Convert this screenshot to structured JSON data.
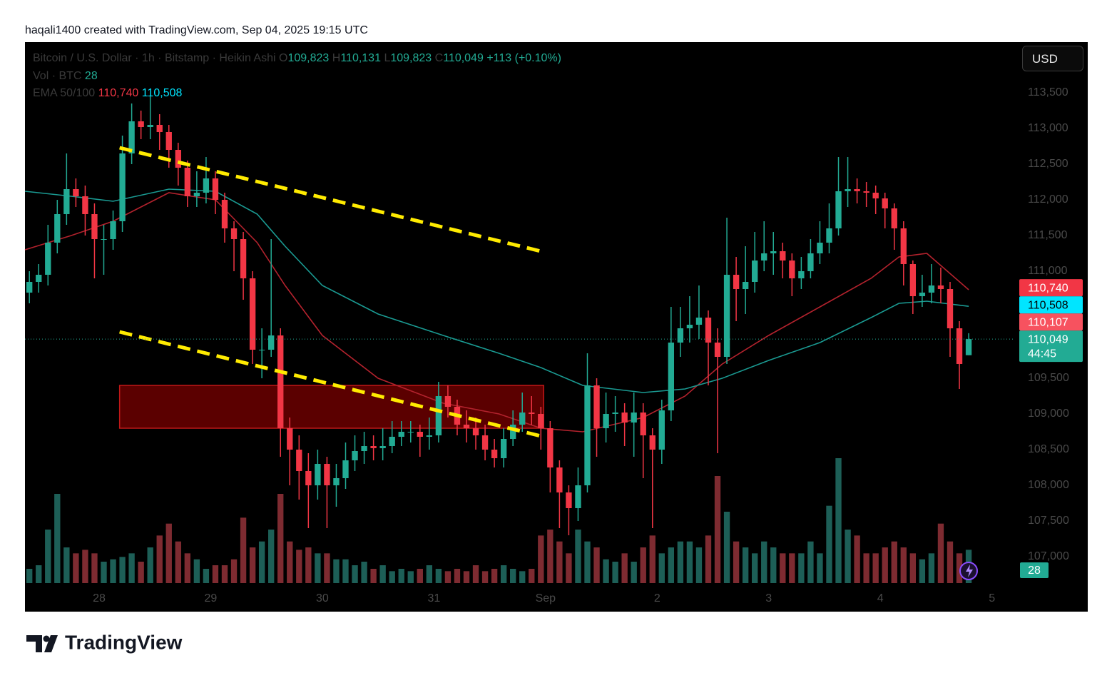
{
  "header": {
    "caption": "haqali1400 created with TradingView.com, Sep 04, 2025 19:15 UTC"
  },
  "footer": {
    "brand": "TradingView"
  },
  "chart_data": {
    "type": "candlestick",
    "legend": {
      "symbol": "Bitcoin / U.S. Dollar · 1h · Bitstamp · Heikin Ashi",
      "o_key": "O",
      "o": "109,823",
      "h_key": "H",
      "h": "110,131",
      "l_key": "L",
      "l": "109,823",
      "c_key": "C",
      "c": "110,049",
      "change": "+113 (+0.10%)",
      "volume": "Vol · BTC",
      "ema": "EMA 50/100"
    },
    "currency": "USD",
    "up_color": "#22ab94",
    "down_color": "#f23645",
    "open": [
      110700,
      110850,
      110950,
      111400,
      111800,
      112150,
      112050,
      111800,
      111450,
      111450,
      111700,
      112650,
      113100,
      113020,
      113050,
      112950,
      112700,
      112450,
      112050,
      112100,
      112300,
      112000,
      111600,
      111450,
      110900,
      109900,
      109900,
      110100,
      108800,
      108500,
      108200,
      108000,
      108300,
      108000,
      108100,
      108350,
      108480,
      108550,
      108520,
      108550,
      108680,
      108750,
      108750,
      108680,
      108700,
      109250,
      109100,
      108850,
      108800,
      108700,
      108500,
      108380,
      108650,
      108850,
      109020,
      109000,
      108800,
      108250,
      107900,
      107680,
      108000,
      109400,
      108800,
      109000,
      109020,
      108880,
      109020,
      108700,
      108500,
      109050,
      110000,
      110200,
      110250,
      110350,
      110000,
      109800,
      110950,
      110750,
      110850,
      111150,
      111250,
      111280,
      111150,
      110900,
      111000,
      111250,
      111400,
      111600,
      112120,
      112150,
      112120,
      112100,
      112020,
      111880,
      111600,
      111100,
      110650,
      110700,
      110800,
      110750,
      110200,
      109823
    ],
    "high": [
      111000,
      111100,
      111650,
      112000,
      112650,
      112300,
      112200,
      111950,
      111650,
      111850,
      112900,
      113350,
      113250,
      113450,
      113200,
      113050,
      112800,
      112550,
      112400,
      112600,
      112400,
      112100,
      111700,
      111550,
      111000,
      110200,
      111450,
      110200,
      108950,
      108700,
      108450,
      108500,
      108400,
      108300,
      108600,
      108700,
      108750,
      108700,
      108800,
      108900,
      108900,
      108900,
      108850,
      108950,
      109450,
      109400,
      109200,
      109050,
      108950,
      108850,
      108650,
      108800,
      109050,
      109300,
      109250,
      109100,
      108900,
      108350,
      108000,
      108250,
      109850,
      109500,
      109300,
      109250,
      109150,
      109300,
      109150,
      108800,
      109200,
      110500,
      110500,
      110650,
      110800,
      110450,
      110200,
      111750,
      111200,
      111350,
      111550,
      111700,
      111550,
      111400,
      111250,
      111200,
      111450,
      111700,
      111950,
      112600,
      112600,
      112300,
      112250,
      112200,
      112100,
      111950,
      111700,
      111150,
      110950,
      111100,
      111050,
      110850,
      110300,
      110131
    ],
    "low": [
      110550,
      110700,
      110800,
      111250,
      111650,
      111900,
      111500,
      110900,
      110950,
      111300,
      111550,
      112500,
      112850,
      112850,
      112700,
      112450,
      112200,
      111900,
      111900,
      111950,
      111800,
      111400,
      111000,
      110600,
      109700,
      109500,
      109800,
      108400,
      108000,
      107800,
      107400,
      107800,
      107400,
      107700,
      107950,
      108200,
      108300,
      108350,
      108350,
      108450,
      108550,
      108600,
      108400,
      108500,
      108600,
      108950,
      108700,
      108600,
      108500,
      108350,
      108250,
      108250,
      108550,
      108750,
      108850,
      108500,
      107900,
      107400,
      107300,
      107500,
      107900,
      108400,
      108600,
      108750,
      108550,
      108400,
      108100,
      107400,
      108300,
      108900,
      109800,
      110000,
      110050,
      109400,
      108450,
      109700,
      110300,
      110400,
      110700,
      111000,
      110950,
      110900,
      110650,
      110750,
      110900,
      111100,
      111250,
      111500,
      111900,
      111950,
      111900,
      111800,
      111600,
      111300,
      110800,
      110400,
      110500,
      110550,
      110550,
      109800,
      109350,
      109823
    ],
    "close": [
      110850,
      110950,
      111400,
      111800,
      112150,
      112050,
      111800,
      111450,
      111450,
      111700,
      112650,
      113100,
      113020,
      113050,
      112950,
      112700,
      112450,
      112050,
      112100,
      112300,
      112000,
      111600,
      111450,
      110900,
      109900,
      109900,
      110100,
      108800,
      108500,
      108200,
      108000,
      108300,
      108000,
      108100,
      108350,
      108480,
      108550,
      108520,
      108550,
      108680,
      108750,
      108750,
      108680,
      108700,
      109250,
      109100,
      108850,
      108800,
      108700,
      108500,
      108380,
      108650,
      108850,
      109020,
      109000,
      108800,
      108250,
      107900,
      107680,
      108000,
      109400,
      108800,
      109000,
      109020,
      108880,
      109020,
      108700,
      108500,
      109050,
      110000,
      110200,
      110250,
      110350,
      110000,
      109800,
      110950,
      110750,
      110850,
      111150,
      111250,
      111280,
      111150,
      110900,
      111000,
      111250,
      111400,
      111600,
      112120,
      112150,
      112120,
      112100,
      112020,
      111880,
      111600,
      111100,
      110650,
      110700,
      110800,
      110750,
      110200,
      109700,
      110049
    ],
    "volume": {
      "values": [
        12,
        15,
        45,
        75,
        30,
        25,
        28,
        25,
        18,
        20,
        22,
        25,
        18,
        30,
        40,
        50,
        35,
        25,
        20,
        12,
        15,
        15,
        20,
        55,
        30,
        35,
        45,
        75,
        35,
        28,
        30,
        25,
        25,
        20,
        20,
        15,
        18,
        12,
        15,
        10,
        12,
        10,
        12,
        15,
        12,
        10,
        12,
        10,
        15,
        10,
        12,
        15,
        12,
        10,
        12,
        40,
        45,
        35,
        25,
        45,
        35,
        30,
        20,
        18,
        25,
        18,
        30,
        40,
        25,
        30,
        35,
        35,
        30,
        40,
        90,
        60,
        35,
        30,
        25,
        35,
        30,
        25,
        25,
        25,
        35,
        25,
        65,
        105,
        45,
        40,
        25,
        25,
        30,
        35,
        30,
        25,
        20,
        25,
        50,
        35,
        25,
        28
      ],
      "ylim": [
        0,
        150
      ],
      "up_color": "#1d5f57",
      "down_color": "#7e2b31"
    },
    "ema": [
      {
        "color": "#b3222d",
        "x": [
          -0.475,
          4.5,
          9,
          15,
          20,
          24.5,
          27.5,
          31.5,
          37.5,
          44.5,
          50.5,
          55,
          59.5,
          66,
          70.5,
          74.5,
          79.5,
          85,
          90.5,
          93.5,
          96.5,
          101
        ],
        "values": [
          111300,
          111500,
          111700,
          112100,
          112000,
          111400,
          110800,
          110100,
          109500,
          109150,
          109000,
          108800,
          108750,
          108950,
          109250,
          109700,
          110100,
          110500,
          110900,
          111200,
          111250,
          110740
        ]
      },
      {
        "color": "#1a9a92",
        "x": [
          -0.475,
          4.5,
          9,
          15,
          20,
          24.5,
          27.5,
          31.5,
          37.5,
          44.5,
          50.5,
          55,
          59.5,
          66,
          70.5,
          74.5,
          79.5,
          85,
          90.5,
          93.5,
          96.5,
          101
        ],
        "values": [
          112120,
          112050,
          111980,
          112150,
          112120,
          111800,
          111350,
          110800,
          110400,
          110100,
          109850,
          109650,
          109400,
          109300,
          109350,
          109500,
          109750,
          110000,
          110350,
          110550,
          110580,
          110508
        ]
      }
    ],
    "xlim": [
      -0.475,
      105.75
    ],
    "xticks": [
      {
        "value": 7.5,
        "label": "28"
      },
      {
        "value": 19.5,
        "label": "29"
      },
      {
        "value": 31.5,
        "label": "30"
      },
      {
        "value": 43.5,
        "label": "31"
      },
      {
        "value": 55.5,
        "label": "Sep"
      },
      {
        "value": 67.5,
        "label": "2"
      },
      {
        "value": 79.5,
        "label": "3"
      },
      {
        "value": 91.5,
        "label": "4"
      },
      {
        "value": 103.5,
        "label": "5"
      }
    ],
    "ylim": [
      106630,
      114210
    ],
    "yticks": [
      {
        "value": 107000,
        "label": "107,000"
      },
      {
        "value": 107500,
        "label": "107,500"
      },
      {
        "value": 108000,
        "label": "108,000"
      },
      {
        "value": 108500,
        "label": "108,500"
      },
      {
        "value": 109000,
        "label": "109,000"
      },
      {
        "value": 109500,
        "label": "109,500"
      },
      {
        "value": 110000,
        "label": "110,000"
      },
      {
        "value": 110500,
        "label": "110,500"
      },
      {
        "value": 111000,
        "label": "111,000"
      },
      {
        "value": 111500,
        "label": "111,500"
      },
      {
        "value": 112000,
        "label": "112,000"
      },
      {
        "value": 112500,
        "label": "112,500"
      },
      {
        "value": 113000,
        "label": "113,000"
      },
      {
        "value": 113500,
        "label": "113,500"
      }
    ],
    "zone": {
      "x": [
        9.7,
        55.3
      ],
      "y": [
        108800,
        109400
      ],
      "color": "#7a0000",
      "border": "#c01818"
    },
    "trend_lines": [
      {
        "x": [
          9.7,
          55.3
        ],
        "y": [
          112730,
          111270
        ],
        "color": "#ffeb00"
      },
      {
        "x": [
          9.7,
          55.3
        ],
        "y": [
          110150,
          108680
        ],
        "color": "#ffeb00"
      }
    ],
    "price_tags": [
      {
        "value": 110740,
        "label": "110,740",
        "color": "#f23645",
        "text_color": "#ffffff"
      },
      {
        "value": 110508,
        "label": "110,508",
        "color": "#00e5ff",
        "text_color": "#000000"
      },
      {
        "value": 110107,
        "label": "110,107",
        "color": "#f7525f",
        "text_color": "#ffffff"
      },
      {
        "value": 110049,
        "label": "110,049",
        "color": "#22ab94",
        "text_color": "#ffffff",
        "countdown": "44:45"
      }
    ]
  }
}
